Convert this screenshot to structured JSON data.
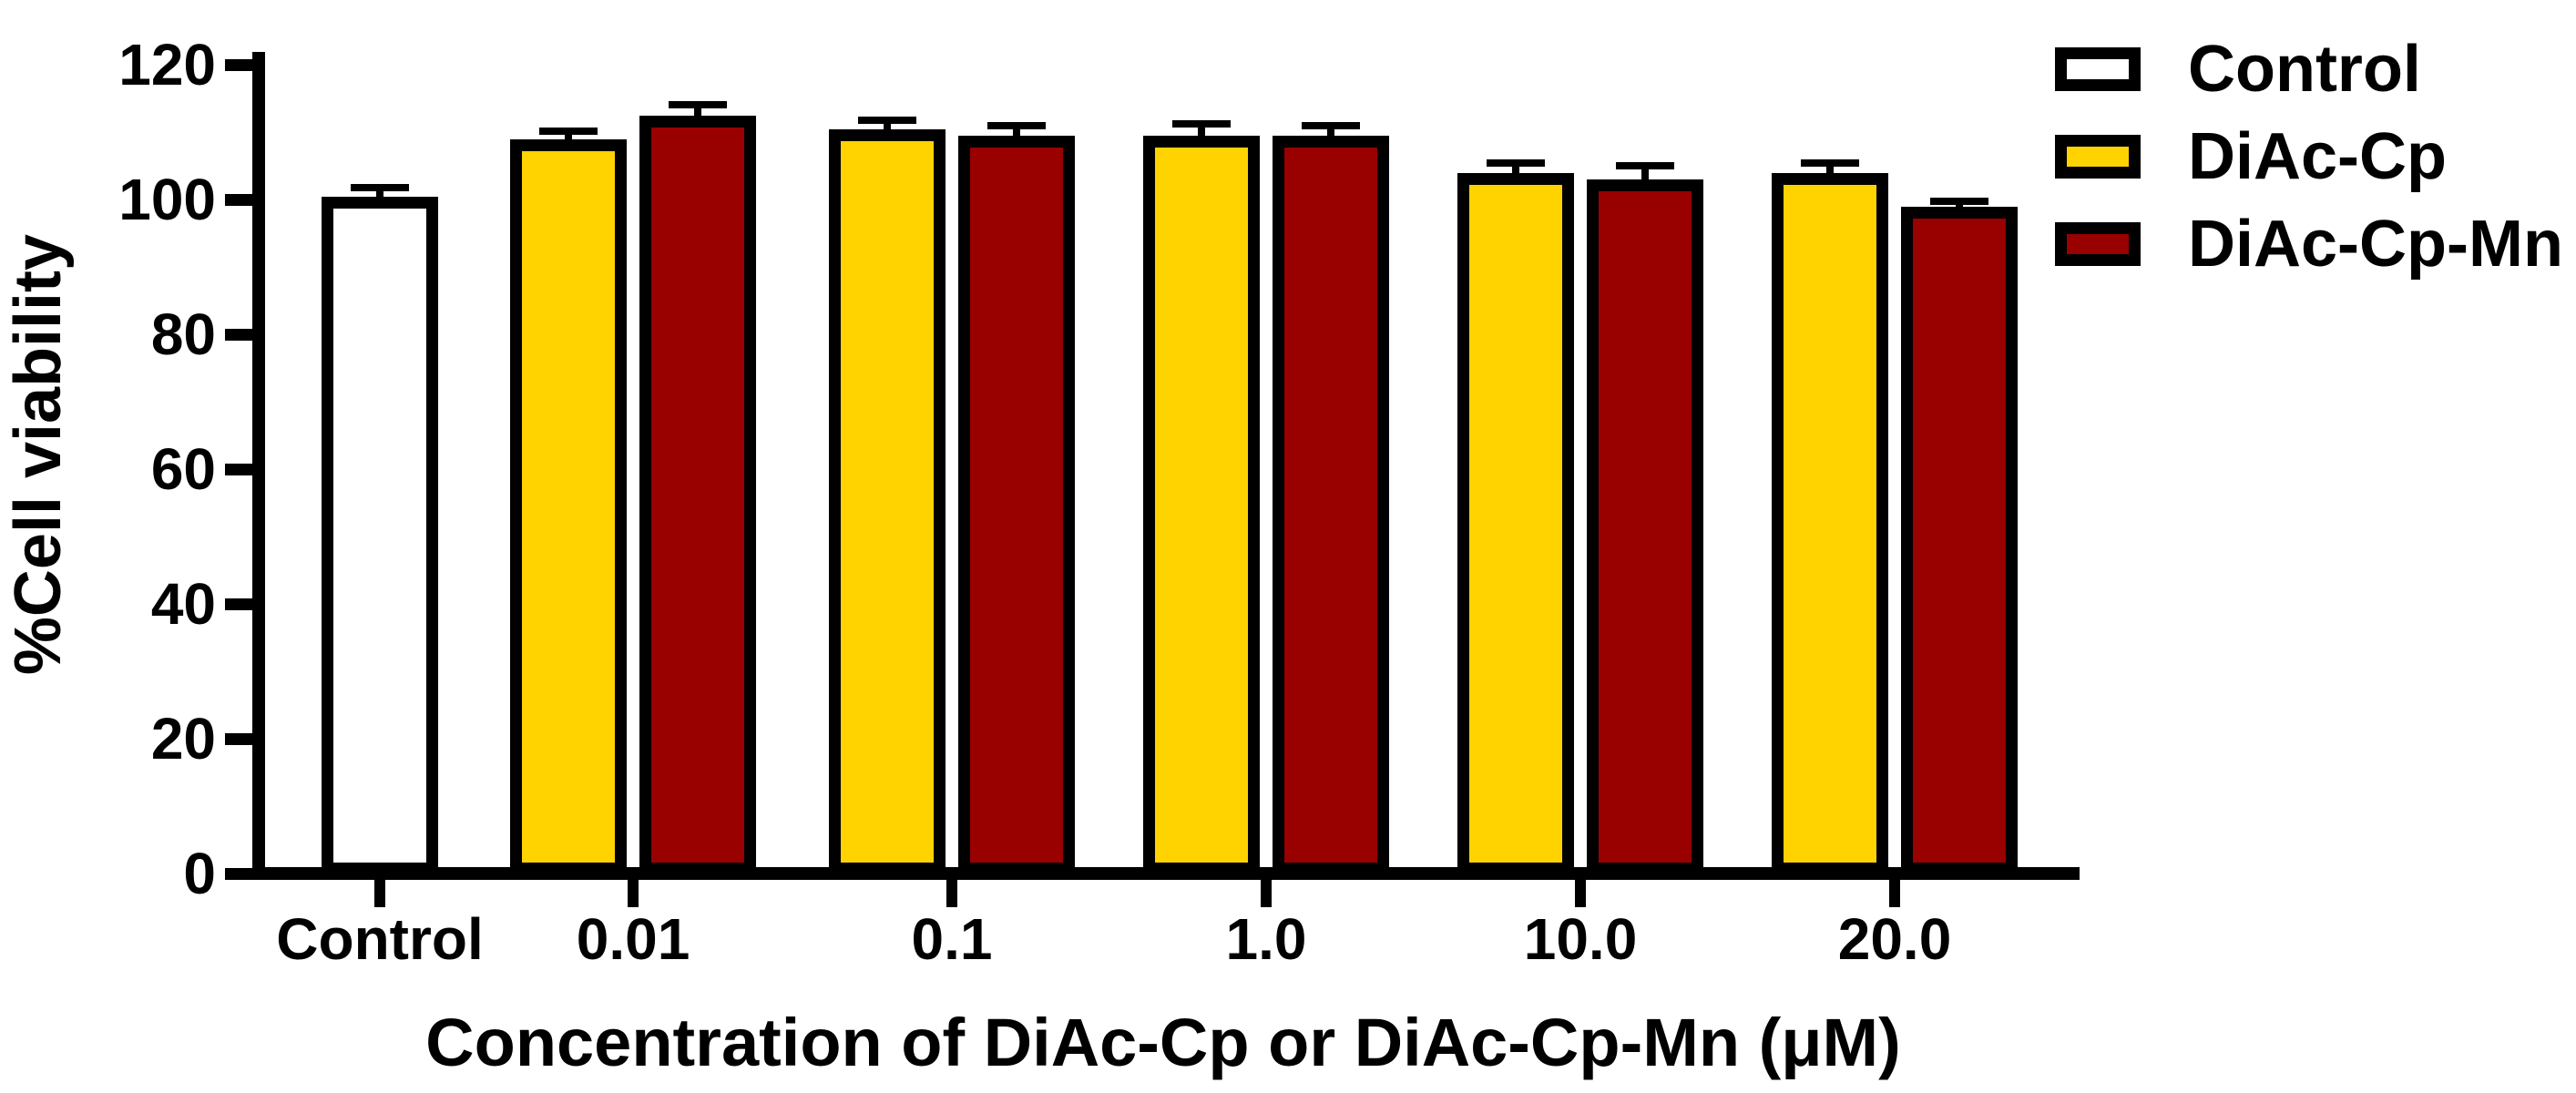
{
  "figure": {
    "background_color": "#FFFFFF",
    "text_color": "#000000"
  },
  "chart_data": {
    "type": "bar",
    "title": "",
    "xlabel": "Concentration of DiAc-Cp or DiAc-Cp-Mn (μM)",
    "ylabel": "%Cell viability",
    "ylim": [
      0,
      120
    ],
    "ytick_interval": 20,
    "yticks": [
      0,
      20,
      40,
      60,
      80,
      100,
      120
    ],
    "categories": [
      "Control",
      "0.01",
      "0.1",
      "1.0",
      "10.0",
      "20.0"
    ],
    "grid": false,
    "legend_position": "top-right",
    "error_bars": "upper-cap-only",
    "bar_outline_color": "#000000",
    "series": [
      {
        "name": "Control",
        "color": "#FFFFFF",
        "values": [
          99.5,
          null,
          null,
          null,
          null,
          null
        ],
        "errors": [
          1.3,
          null,
          null,
          null,
          null,
          null
        ]
      },
      {
        "name": "DiAc-Cp",
        "color": "#FFD300",
        "values": [
          null,
          108,
          109.5,
          108.5,
          103,
          103
        ],
        "errors": [
          null,
          1.2,
          1.3,
          1.8,
          1.5,
          1.5
        ]
      },
      {
        "name": "DiAc-Cp-Mn",
        "color": "#990000",
        "values": [
          null,
          111.5,
          108.5,
          108.5,
          102,
          98
        ],
        "errors": [
          null,
          1.6,
          1.5,
          1.5,
          2.0,
          0.8
        ]
      }
    ]
  }
}
